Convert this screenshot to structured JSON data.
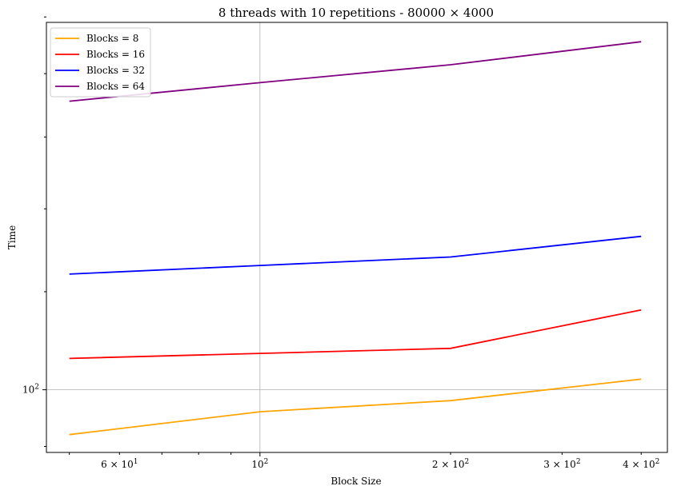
{
  "chart_data": {
    "type": "line",
    "title": "8 threads with 10 repetitions - 80000 × 4000",
    "xlabel": "Block Size",
    "ylabel": "Time",
    "x_scale": "log",
    "y_scale": "log",
    "xlim": [
      46,
      440
    ],
    "ylim": [
      89,
      198
    ],
    "grid": "major",
    "legend_position": "top-left",
    "x": [
      50,
      100,
      200,
      400
    ],
    "series": [
      {
        "name": "Blocks = 8",
        "color": "#ffa500",
        "values": [
          92,
          96,
          98,
          102
        ]
      },
      {
        "name": "Blocks = 16",
        "color": "#ff0000",
        "values": [
          106,
          107,
          108,
          116
        ]
      },
      {
        "name": "Blocks = 32",
        "color": "#0000ff",
        "values": [
          124,
          126,
          128,
          133
        ]
      },
      {
        "name": "Blocks = 64",
        "color": "#800080",
        "values": [
          171,
          177,
          183,
          191
        ]
      }
    ],
    "x_ticks": [
      {
        "value": 60,
        "label_base": "6 × 10",
        "exp": "1"
      },
      {
        "value": 100,
        "label_base": "10",
        "exp": "2"
      },
      {
        "value": 200,
        "label_base": "2 × 10",
        "exp": "2"
      },
      {
        "value": 300,
        "label_base": "3 × 10",
        "exp": "2"
      },
      {
        "value": 400,
        "label_base": "4 × 10",
        "exp": "2"
      }
    ],
    "y_ticks": [
      {
        "value": 100,
        "label_base": "10",
        "exp": "2"
      }
    ]
  }
}
